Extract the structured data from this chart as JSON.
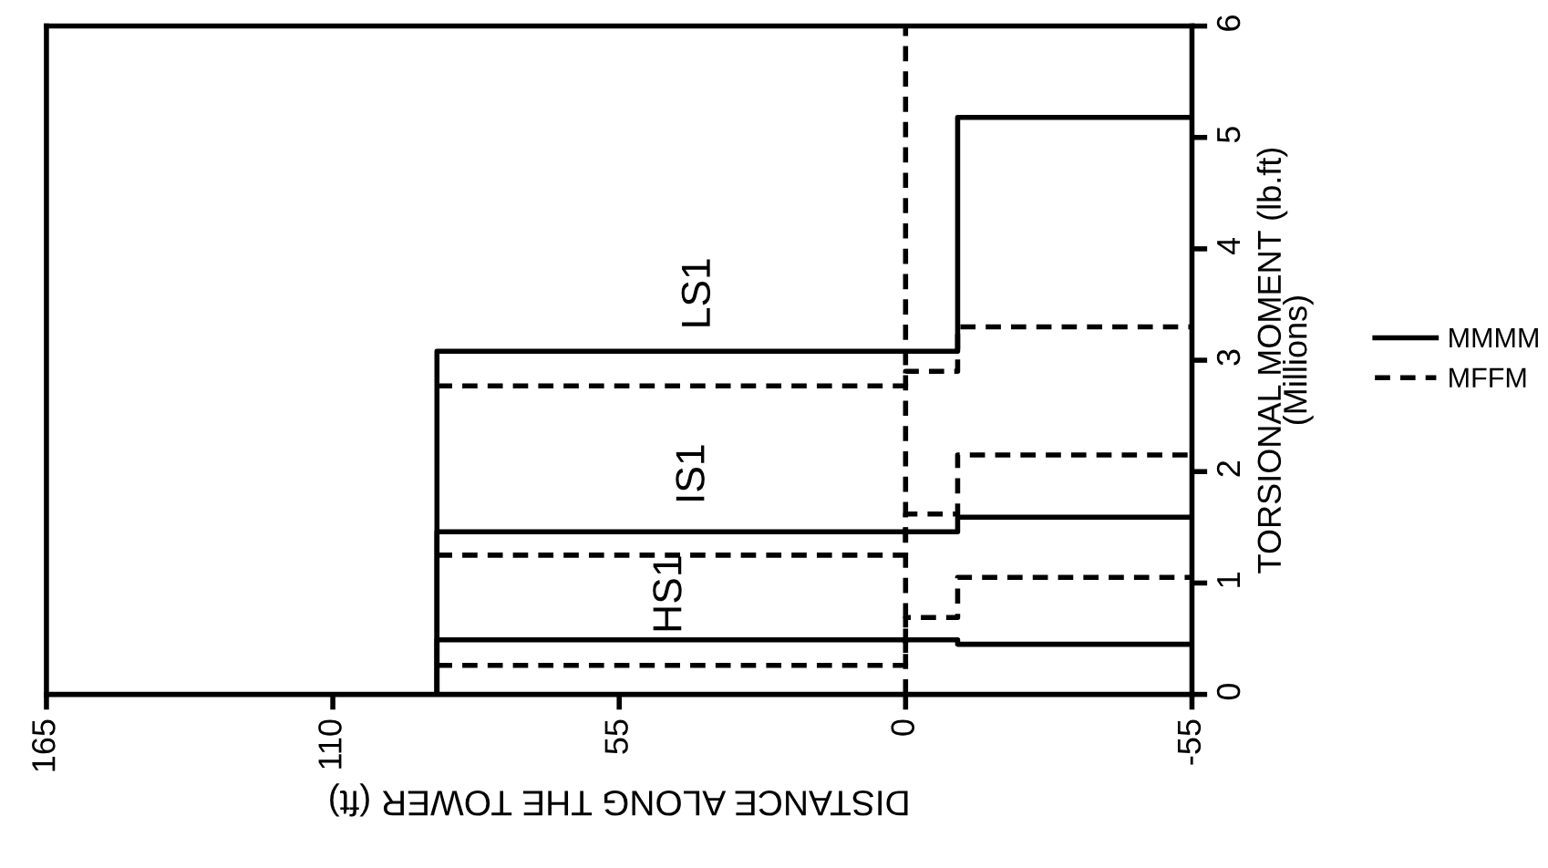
{
  "chart_data": {
    "type": "step",
    "xlabel": "DISTANCE ALONG THE TOWER (ft)",
    "ylabel": "TORSIONAL MOMENT (lb.ft)\n(Millions)",
    "xlim": [
      165,
      -55
    ],
    "xticks": [
      165,
      110,
      55,
      0,
      -55
    ],
    "ylim": [
      0,
      6
    ],
    "yticks": [
      0,
      1,
      2,
      3,
      4,
      5,
      6
    ],
    "grid": false,
    "legend": "right",
    "series": [
      {
        "name": "MMMM",
        "color": "#000000",
        "line_style": "solid",
        "x": [
          90,
          90,
          -10,
          -55
        ],
        "values": [
          0,
          0.49,
          0.45,
          0.45
        ]
      },
      {
        "color": "#000000",
        "line_style": "solid",
        "x": [
          90,
          90,
          -10,
          -55
        ],
        "values": [
          0,
          1.46,
          1.59,
          1.59
        ]
      },
      {
        "color": "#000000",
        "line_style": "solid",
        "x": [
          90,
          90,
          -10,
          -55
        ],
        "values": [
          0,
          3.08,
          5.18,
          5.18
        ]
      },
      {
        "name": "MFFM",
        "color": "#000000",
        "line_style": "dashed",
        "x": [
          90,
          0,
          -10,
          -55
        ],
        "values": [
          0.26,
          0.69,
          1.05,
          1.05
        ]
      },
      {
        "color": "#000000",
        "line_style": "dashed",
        "x": [
          90,
          0,
          -10,
          -55
        ],
        "values": [
          1.25,
          1.62,
          2.15,
          2.15
        ]
      },
      {
        "color": "#000000",
        "line_style": "dashed",
        "x": [
          90,
          0,
          -10,
          -55
        ],
        "values": [
          2.77,
          2.9,
          3.3,
          3.3
        ]
      }
    ],
    "ref_lines": [
      {
        "axis": "x",
        "value": 0,
        "line_style": "dashed",
        "color": "#000000"
      }
    ],
    "annotations": [
      "HS1",
      "IS1",
      "LS1"
    ]
  }
}
